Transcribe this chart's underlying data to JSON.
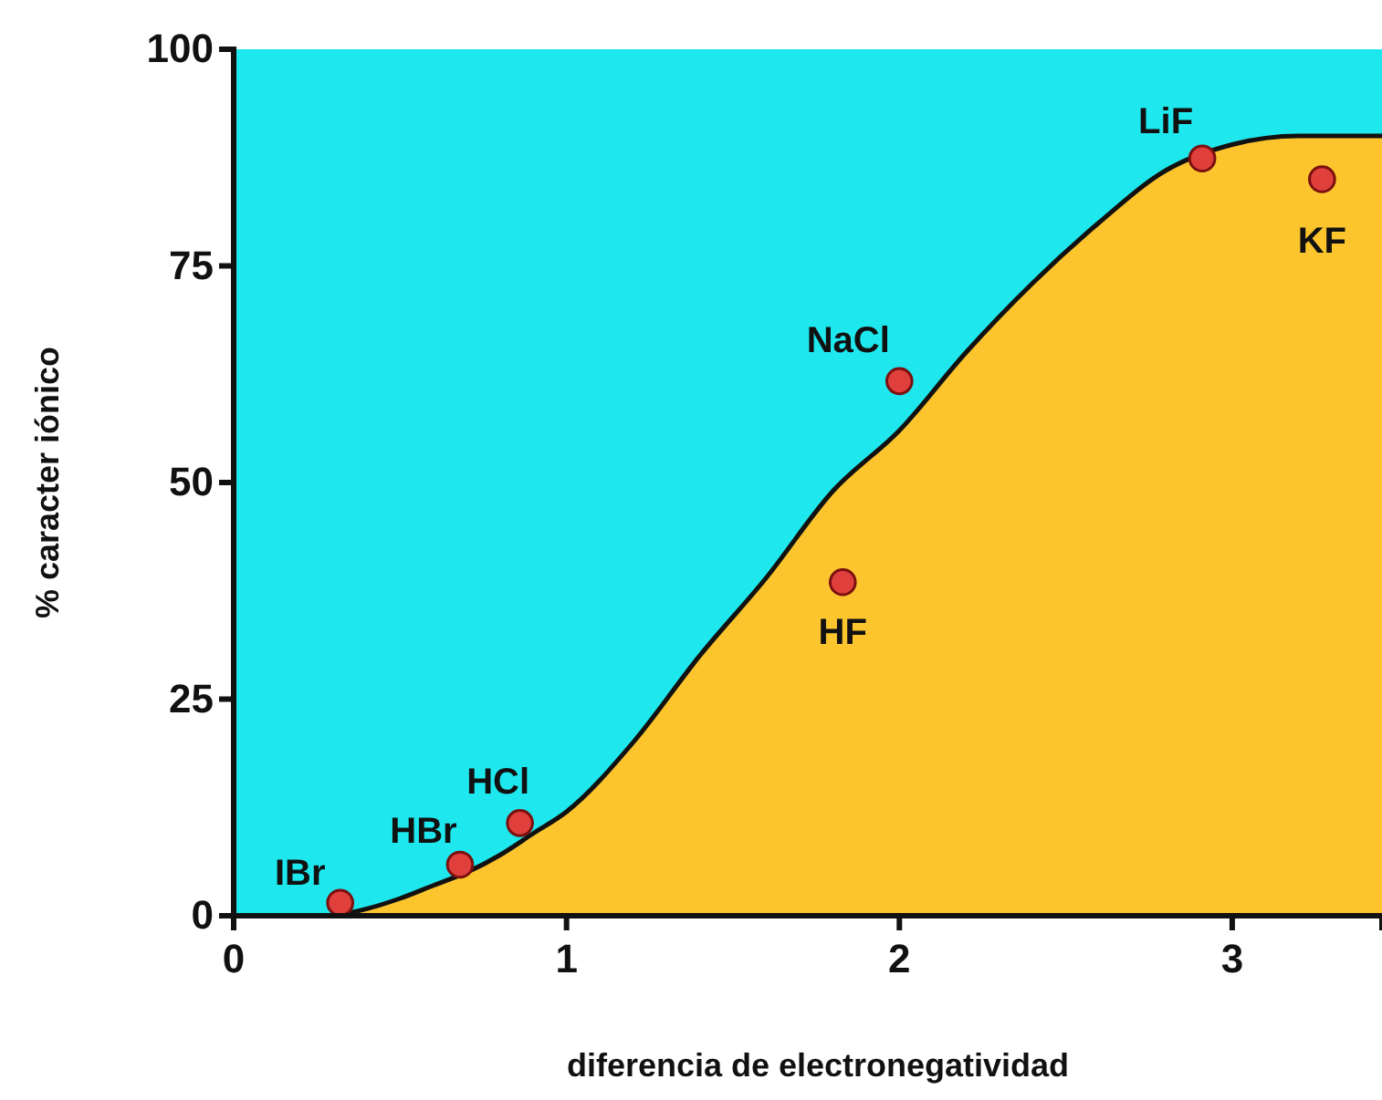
{
  "chart_data": {
    "type": "area",
    "xlabel": "diferencia de electronegatividad",
    "ylabel": "% caracter iónico",
    "xlim": [
      0,
      3.45
    ],
    "ylim": [
      0,
      100
    ],
    "xticks": [
      0,
      1,
      2,
      3
    ],
    "yticks": [
      0,
      25,
      50,
      75,
      100
    ],
    "grid": false,
    "series": [
      {
        "color": "#fcc52e",
        "x": [
          0.3,
          0.4,
          0.5,
          0.6,
          0.7,
          0.8,
          0.9,
          1.0,
          1.2,
          1.4,
          1.6,
          1.8,
          2.0,
          2.2,
          2.4,
          2.6,
          2.8,
          3.0,
          3.2,
          3.45
        ],
        "values": [
          0,
          0.8,
          2,
          3.5,
          5,
          7,
          9.5,
          12,
          20,
          30,
          39,
          49,
          56,
          65,
          73,
          80,
          86,
          89,
          90,
          90
        ]
      },
      {
        "type": "scatter",
        "color": "#e0403c",
        "marker": "circle",
        "x": [
          0.32,
          0.68,
          0.86,
          1.83,
          2.0,
          2.91,
          3.27
        ],
        "values": [
          1.5,
          5.9,
          10.7,
          38.5,
          61.7,
          87.4,
          85
        ]
      }
    ],
    "annotations": [
      {
        "text": "IBr",
        "x": 0.32,
        "y": 1.5
      },
      {
        "text": "HBr",
        "x": 0.68,
        "y": 5.9
      },
      {
        "text": "HCl",
        "x": 0.86,
        "y": 10.7
      },
      {
        "text": "HF",
        "x": 1.83,
        "y": 38.5
      },
      {
        "text": "NaCl",
        "x": 2.0,
        "y": 61.7
      },
      {
        "text": "LiF",
        "x": 2.91,
        "y": 87.4
      },
      {
        "text": "KF",
        "x": 3.27,
        "y": 85
      }
    ]
  }
}
